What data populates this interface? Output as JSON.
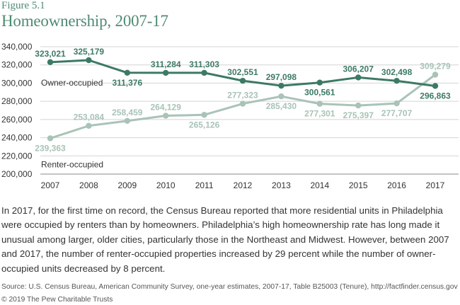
{
  "figure_label": "Figure 5.1",
  "title": "Homeownership, 2007-17",
  "chart_data": {
    "type": "line",
    "title": "Homeownership, 2007-17",
    "xlabel": "",
    "ylabel": "",
    "categories": [
      "2007",
      "2008",
      "2009",
      "2010",
      "2011",
      "2012",
      "2013",
      "2014",
      "2015",
      "2016",
      "2017"
    ],
    "ylim": [
      200000,
      340000
    ],
    "yticks": [
      200000,
      220000,
      240000,
      260000,
      280000,
      300000,
      320000,
      340000
    ],
    "ytick_labels": [
      "200,000",
      "220,000",
      "240,000",
      "260,000",
      "280,000",
      "300,000",
      "320,000",
      "340,000"
    ],
    "grid": "horizontal",
    "series": [
      {
        "name": "Owner-occupied",
        "color": "#3d7a65",
        "values": [
          323021,
          325179,
          311376,
          311284,
          311303,
          302551,
          297098,
          300561,
          306207,
          302498,
          296863
        ],
        "labels": [
          "323,021",
          "325,179",
          "311,376",
          "311,284",
          "311,303",
          "302,551",
          "297,098",
          "300,561",
          "306,207",
          "302,498",
          "296,863"
        ],
        "label_pos": [
          "above",
          "above",
          "below",
          "above",
          "above",
          "above",
          "above",
          "below",
          "above",
          "above",
          "below"
        ]
      },
      {
        "name": "Renter-occupied",
        "color": "#a9c3b6",
        "values": [
          239363,
          253084,
          258459,
          264129,
          265126,
          277323,
          285430,
          277301,
          275397,
          277707,
          309279
        ],
        "labels": [
          "239,363",
          "253,084",
          "258,459",
          "264,129",
          "265,126",
          "277,323",
          "285,430",
          "277,301",
          "275,397",
          "277,707",
          "309,279"
        ],
        "label_pos": [
          "below",
          "above",
          "above",
          "above",
          "below",
          "above",
          "below",
          "below",
          "below",
          "below",
          "above"
        ]
      }
    ]
  },
  "caption": "In 2017, for the first time on record, the Census Bureau reported that more residential units in Philadelphia were occupied by renters than by homeowners. Philadelphia’s high homeownership rate has long made it unusual among larger, older cities, particularly those in the Northeast and Midwest. However, between 2007 and 2017, the number of renter-occupied properties increased by 29 percent while the number of owner-occupied units decreased by 8 percent.",
  "source": "Source: U.S. Census Bureau, American Community Survey, one-year estimates, 2007-17, Table B25003 (Tenure), http://factfinder.census.gov",
  "copyright": "© 2019 The Pew Charitable Trusts"
}
